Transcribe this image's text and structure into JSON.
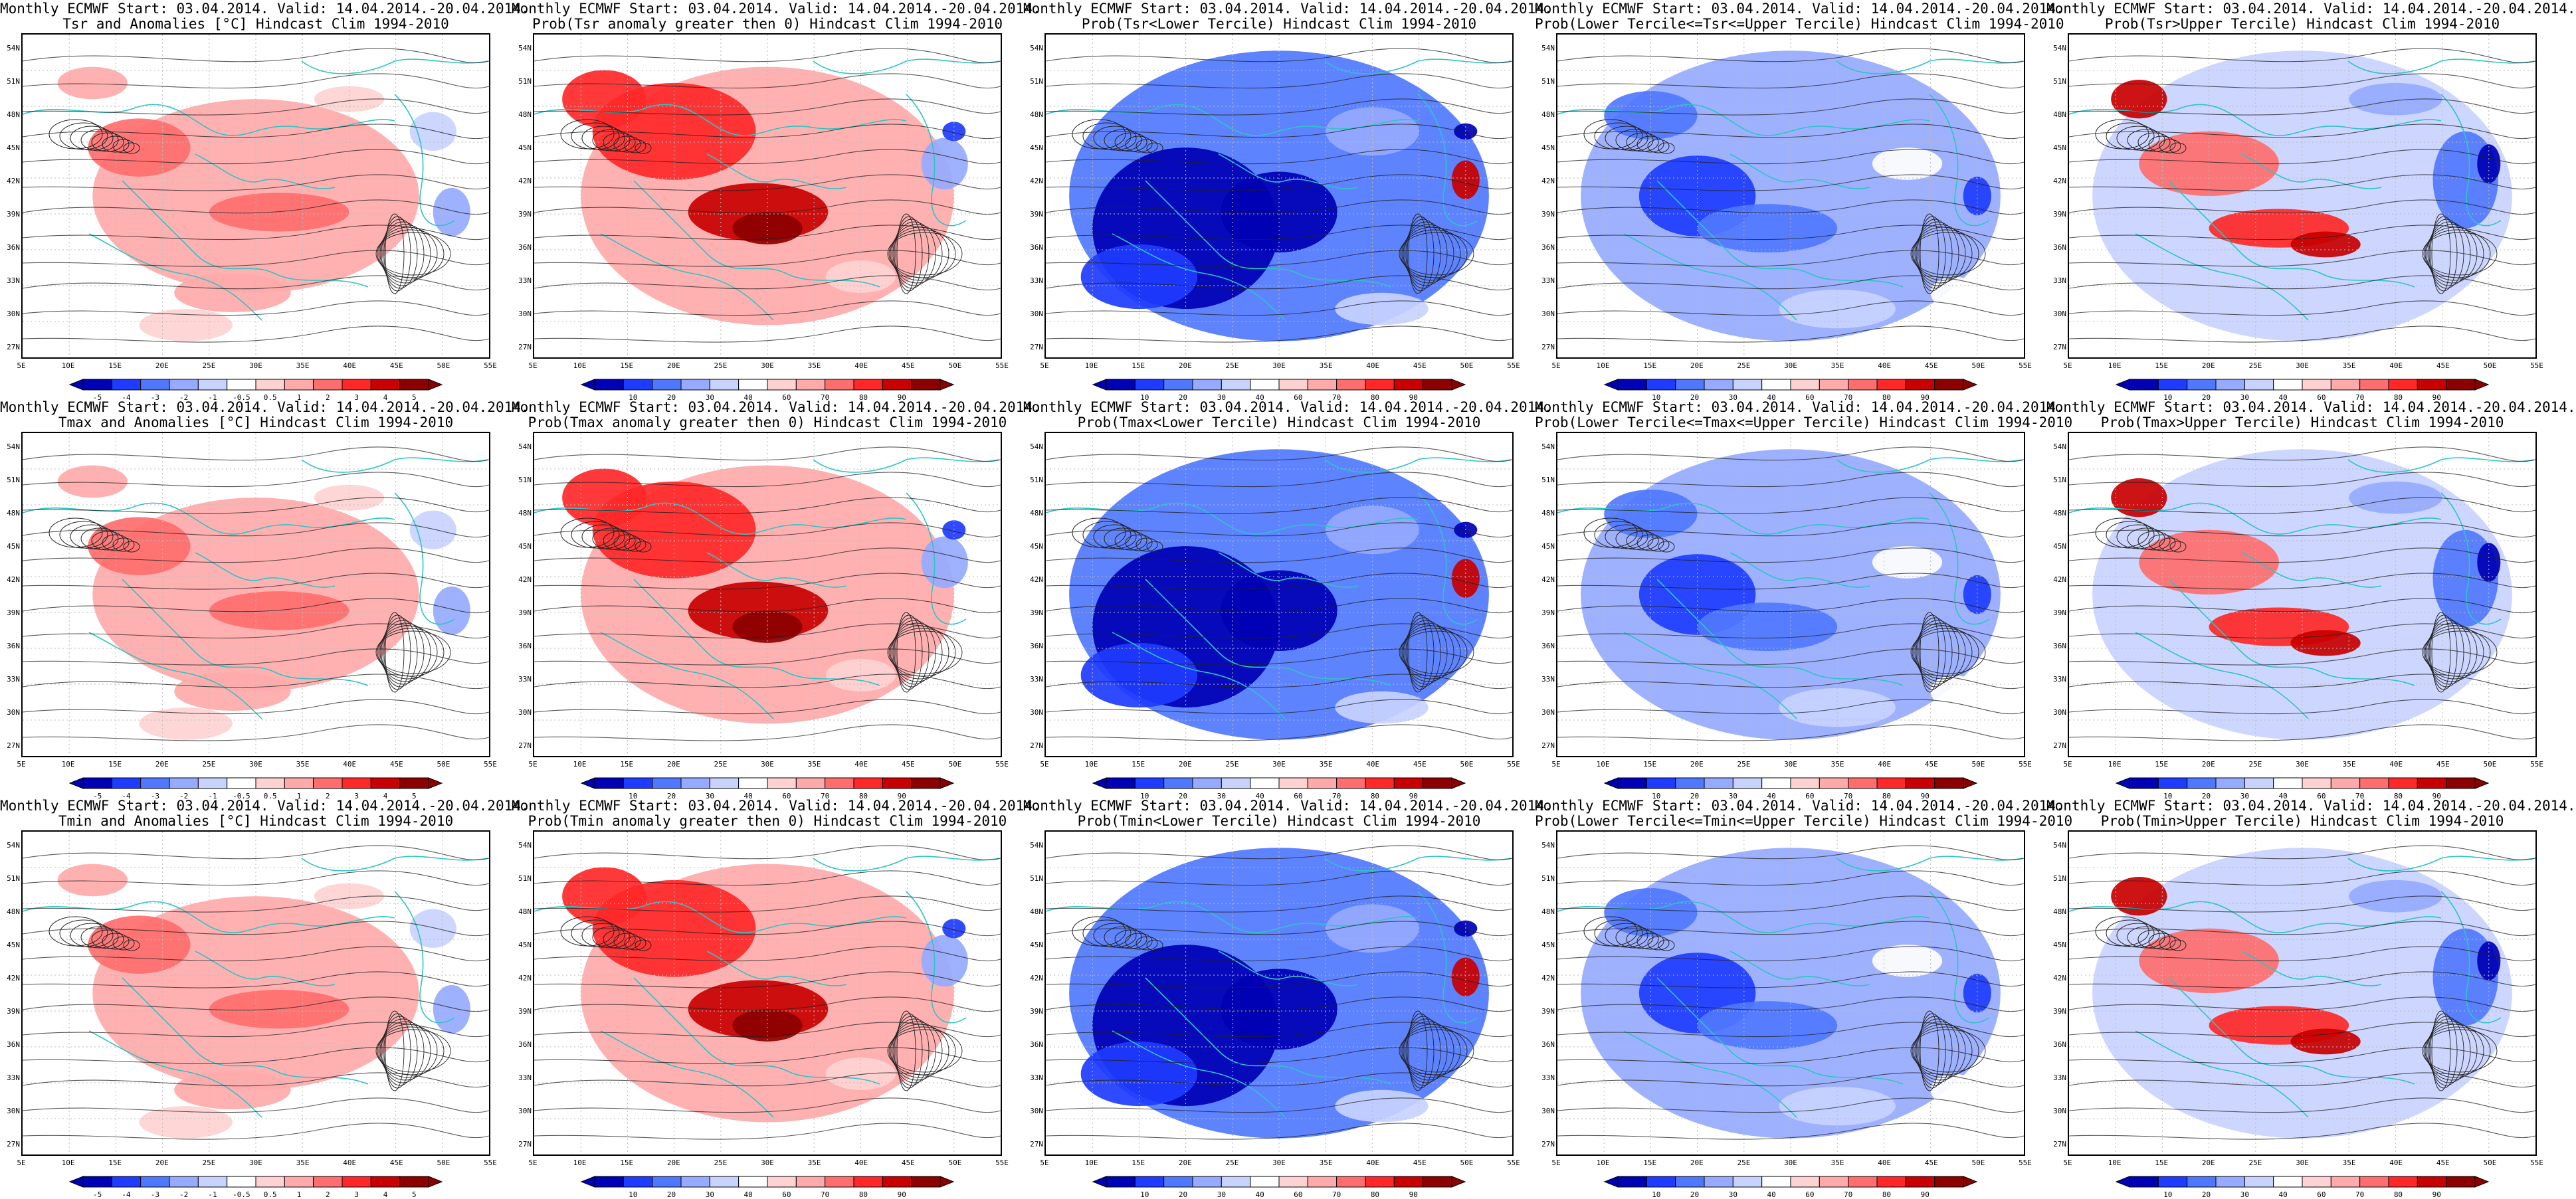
{
  "latitudes": [
    "54N",
    "51N",
    "48N",
    "45N",
    "42N",
    "39N",
    "36N",
    "33N",
    "30N",
    "27N"
  ],
  "longitudes": [
    "5E",
    "10E",
    "15E",
    "20E",
    "25E",
    "30E",
    "35E",
    "40E",
    "45E",
    "50E",
    "55E"
  ],
  "colors": {
    "coast": "#2ec4c4",
    "contour": "#222222",
    "anomaly_scale": [
      "#0000b4",
      "#1e3cff",
      "#5078ff",
      "#96aaff",
      "#c8d2ff",
      "#ffffff",
      "#ffd2d2",
      "#ffaaaa",
      "#ff6e6e",
      "#ff2828",
      "#c80000",
      "#8c0000"
    ],
    "prob_scale": [
      "#0000b4",
      "#1e3cff",
      "#5078ff",
      "#96aaff",
      "#c8d2ff",
      "#ffffff",
      "#ffd2d2",
      "#ffaaaa",
      "#ff6e6e",
      "#ff2828",
      "#c80000",
      "#8c0000"
    ]
  },
  "colorbars": {
    "anomaly_labels": [
      "-5",
      "-4",
      "-3",
      "-2",
      "-1",
      "-0.5",
      "0.5",
      "1",
      "2",
      "3",
      "4",
      "5"
    ],
    "prob_labels": [
      "10",
      "20",
      "30",
      "40",
      "60",
      "70",
      "80",
      "90"
    ]
  },
  "panels": [
    {
      "line1": "Monthly ECMWF Start: 03.04.2014. Valid: 14.04.2014.-20.04.2014.",
      "line2": "Tsr and Anomalies [°C] Hindcast Clim 1994-2010",
      "scale": "anomaly",
      "pattern": "anom"
    },
    {
      "line1": "Monthly ECMWF Start: 03.04.2014. Valid: 14.04.2014.-20.04.2014.",
      "line2": "Prob(Tsr anomaly greater then 0) Hindcast Clim 1994-2010",
      "scale": "prob",
      "pattern": "warm"
    },
    {
      "line1": "Monthly ECMWF Start: 03.04.2014. Valid: 14.04.2014.-20.04.2014.",
      "line2": "Prob(Tsr<Lower Tercile) Hindcast Clim 1994-2010",
      "scale": "prob",
      "pattern": "cold"
    },
    {
      "line1": "Monthly ECMWF Start: 03.04.2014. Valid: 14.04.2014.-20.04.2014.",
      "line2": "Prob(Lower Tercile<=Tsr<=Upper Tercile) Hindcast Clim 1994-2010",
      "scale": "prob",
      "pattern": "mid"
    },
    {
      "line1": "Monthly ECMWF Start: 03.04.2014. Valid: 14.04.2014.-20.04.2014.",
      "line2": "Prob(Tsr>Upper Tercile) Hindcast Clim 1994-2010",
      "scale": "prob",
      "pattern": "upper"
    },
    {
      "line1": "Monthly ECMWF Start: 03.04.2014. Valid: 14.04.2014.-20.04.2014.",
      "line2": "Tmax and Anomalies [°C] Hindcast Clim 1994-2010",
      "scale": "anomaly",
      "pattern": "anom"
    },
    {
      "line1": "Monthly ECMWF Start: 03.04.2014. Valid: 14.04.2014.-20.04.2014.",
      "line2": "Prob(Tmax anomaly greater then 0) Hindcast Clim 1994-2010",
      "scale": "prob",
      "pattern": "warm"
    },
    {
      "line1": "Monthly ECMWF Start: 03.04.2014. Valid: 14.04.2014.-20.04.2014.",
      "line2": "Prob(Tmax<Lower Tercile) Hindcast Clim 1994-2010",
      "scale": "prob",
      "pattern": "cold"
    },
    {
      "line1": "Monthly ECMWF Start: 03.04.2014. Valid: 14.04.2014.-20.04.2014.",
      "line2": "Prob(Lower Tercile<=Tmax<=Upper Tercile) Hindcast Clim 1994-2010",
      "scale": "prob",
      "pattern": "mid"
    },
    {
      "line1": "Monthly ECMWF Start: 03.04.2014. Valid: 14.04.2014.-20.04.2014.",
      "line2": "Prob(Tmax>Upper Tercile) Hindcast Clim 1994-2010",
      "scale": "prob",
      "pattern": "upper"
    },
    {
      "line1": "Monthly ECMWF Start: 03.04.2014. Valid: 14.04.2014.-20.04.2014.",
      "line2": "Tmin and Anomalies [°C] Hindcast Clim 1994-2010",
      "scale": "anomaly",
      "pattern": "anom"
    },
    {
      "line1": "Monthly ECMWF Start: 03.04.2014. Valid: 14.04.2014.-20.04.2014.",
      "line2": "Prob(Tmin anomaly greater then 0) Hindcast Clim 1994-2010",
      "scale": "prob",
      "pattern": "warm"
    },
    {
      "line1": "Monthly ECMWF Start: 03.04.2014. Valid: 14.04.2014.-20.04.2014.",
      "line2": "Prob(Tmin<Lower Tercile) Hindcast Clim 1994-2010",
      "scale": "prob",
      "pattern": "cold"
    },
    {
      "line1": "Monthly ECMWF Start: 03.04.2014. Valid: 14.04.2014.-20.04.2014.",
      "line2": "Prob(Lower Tercile<=Tmin<=Upper Tercile) Hindcast Clim 1994-2010",
      "scale": "prob",
      "pattern": "mid"
    },
    {
      "line1": "Monthly ECMWF Start: 03.04.2014. Valid: 14.04.2014.-20.04.2014.",
      "line2": "Prob(Tmin>Upper Tercile) Hindcast Clim 1994-2010",
      "scale": "prob",
      "pattern": "upper"
    }
  ]
}
